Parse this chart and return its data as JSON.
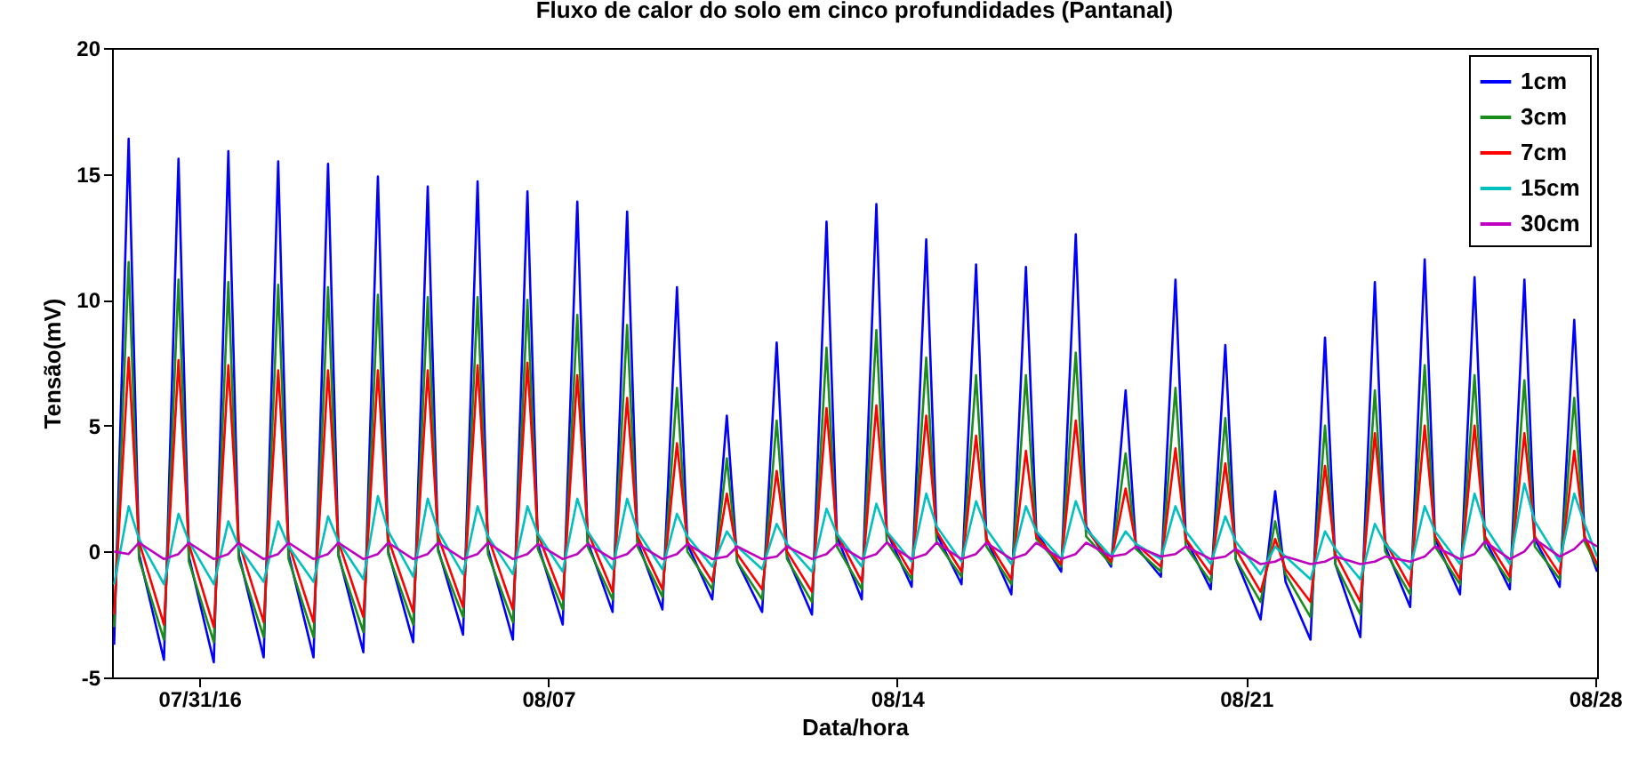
{
  "chart_data": {
    "type": "line",
    "title": "Fluxo de calor do solo em cinco profundidades (Pantanal)",
    "xlabel": "Data/hora",
    "ylabel": "Tensão(mV)",
    "x": [
      "--07-29T07:00",
      "--07-29T14:00",
      "--07-29T19:00",
      "--07-30T07:00",
      "--07-30T14:00",
      "--07-30T19:00",
      "--07-31T07:00",
      "--07-31T14:00",
      "--07-31T19:00",
      "--08-01T07:00",
      "--08-01T14:00",
      "--08-01T19:00",
      "--08-02T07:00",
      "--08-02T14:00",
      "--08-02T19:00",
      "--08-03T07:00",
      "--08-03T14:00",
      "--08-03T19:00",
      "--08-04T07:00",
      "--08-04T14:00",
      "--08-04T19:00",
      "--08-05T07:00",
      "--08-05T14:00",
      "--08-05T19:00",
      "--08-06T07:00",
      "--08-06T14:00",
      "--08-06T19:00",
      "--08-07T07:00",
      "--08-07T14:00",
      "--08-07T19:00",
      "--08-08T07:00",
      "--08-08T14:00",
      "--08-08T19:00",
      "--08-09T07:00",
      "--08-09T14:00",
      "--08-09T19:00",
      "--08-10T07:00",
      "--08-10T14:00",
      "--08-10T19:00",
      "--08-11T07:00",
      "--08-11T14:00",
      "--08-11T19:00",
      "--08-12T07:00",
      "--08-12T14:00",
      "--08-12T19:00",
      "--08-13T07:00",
      "--08-13T14:00",
      "--08-13T19:00",
      "--08-14T07:00",
      "--08-14T14:00",
      "--08-14T19:00",
      "--08-15T07:00",
      "--08-15T14:00",
      "--08-15T19:00",
      "--08-16T07:00",
      "--08-16T14:00",
      "--08-16T19:00",
      "--08-17T07:00",
      "--08-17T14:00",
      "--08-17T19:00",
      "--08-18T07:00",
      "--08-18T14:00",
      "--08-18T19:00",
      "--08-19T07:00",
      "--08-19T14:00",
      "--08-19T19:00",
      "--08-20T07:00",
      "--08-20T14:00",
      "--08-20T19:00",
      "--08-21T07:00",
      "--08-21T14:00",
      "--08-21T19:00",
      "--08-22T07:00",
      "--08-22T14:00",
      "--08-22T19:00",
      "--08-23T07:00",
      "--08-23T14:00",
      "--08-23T19:00",
      "--08-24T07:00",
      "--08-24T14:00",
      "--08-24T19:00",
      "--08-25T07:00",
      "--08-25T14:00",
      "--08-25T19:00",
      "--08-26T07:00",
      "--08-26T14:00",
      "--08-26T19:00",
      "--08-27T07:00",
      "--08-27T14:00",
      "--08-27T19:00",
      "--08-28T01:00"
    ],
    "series": [
      {
        "name": "1cm",
        "color": "#0000ff",
        "values": [
          -3.7,
          16.4,
          -0.1,
          -4.3,
          15.6,
          -0.2,
          -4.4,
          15.9,
          -0.1,
          -4.2,
          15.5,
          -0.1,
          -4.2,
          15.4,
          -0.1,
          -4.0,
          14.9,
          0.0,
          -3.6,
          14.5,
          0.1,
          -3.3,
          14.7,
          0.1,
          -3.5,
          14.3,
          0.3,
          -2.9,
          13.9,
          0.4,
          -2.4,
          13.5,
          0.4,
          -2.3,
          10.5,
          0.3,
          -1.9,
          5.4,
          -0.4,
          -2.4,
          8.3,
          -0.2,
          -2.5,
          13.1,
          0.6,
          -1.9,
          13.8,
          0.8,
          -1.4,
          12.4,
          0.7,
          -1.3,
          11.4,
          0.5,
          -1.7,
          11.3,
          0.8,
          -0.8,
          12.6,
          1.0,
          -0.6,
          6.4,
          0.2,
          -1.0,
          10.8,
          0.5,
          -1.5,
          8.2,
          -0.3,
          -2.7,
          2.4,
          -1.2,
          -3.5,
          8.5,
          -0.5,
          -3.4,
          10.7,
          0.2,
          -2.2,
          11.6,
          0.5,
          -1.7,
          10.9,
          0.5,
          -1.5,
          10.8,
          0.5,
          -1.4,
          9.2,
          0.6,
          -0.8
        ]
      },
      {
        "name": "3cm",
        "color": "#1a8c1a",
        "values": [
          -3.0,
          11.5,
          -0.3,
          -3.5,
          10.8,
          -0.4,
          -3.6,
          10.7,
          -0.3,
          -3.4,
          10.6,
          -0.3,
          -3.4,
          10.5,
          -0.2,
          -3.2,
          10.2,
          -0.1,
          -2.9,
          10.1,
          0.0,
          -2.6,
          10.1,
          -0.1,
          -2.8,
          10.0,
          0.1,
          -2.3,
          9.4,
          0.2,
          -1.9,
          9.0,
          0.2,
          -1.8,
          6.5,
          0.0,
          -1.5,
          3.7,
          -0.4,
          -1.9,
          5.2,
          -0.3,
          -2.0,
          8.1,
          0.2,
          -1.5,
          8.8,
          0.4,
          -1.1,
          7.7,
          0.4,
          -1.0,
          7.0,
          0.2,
          -1.3,
          7.0,
          0.5,
          -0.6,
          7.9,
          0.6,
          -0.5,
          3.9,
          0.1,
          -0.8,
          6.5,
          0.2,
          -1.2,
          5.3,
          -0.3,
          -2.0,
          1.2,
          -0.9,
          -2.6,
          5.0,
          -0.5,
          -2.5,
          6.4,
          0.0,
          -1.7,
          7.4,
          0.2,
          -1.3,
          7.0,
          0.2,
          -1.2,
          6.8,
          0.2,
          -1.1,
          6.1,
          0.4,
          -0.6
        ]
      },
      {
        "name": "7cm",
        "color": "#ff0000",
        "values": [
          -2.5,
          7.7,
          0.4,
          -2.9,
          7.6,
          0.3,
          -3.0,
          7.4,
          0.4,
          -2.8,
          7.2,
          0.3,
          -2.8,
          7.2,
          0.4,
          -2.6,
          7.2,
          0.5,
          -2.4,
          7.2,
          0.6,
          -2.2,
          7.4,
          0.6,
          -2.3,
          7.5,
          0.7,
          -1.9,
          7.0,
          0.8,
          -1.6,
          6.1,
          0.6,
          -1.5,
          4.3,
          0.4,
          -1.2,
          2.3,
          -0.1,
          -1.5,
          3.2,
          0.0,
          -1.6,
          5.7,
          0.7,
          -1.2,
          5.8,
          0.8,
          -0.9,
          5.4,
          0.8,
          -0.8,
          4.6,
          0.5,
          -1.1,
          4.0,
          0.6,
          -0.5,
          5.2,
          0.9,
          -0.4,
          2.5,
          0.3,
          -0.6,
          4.1,
          0.5,
          -0.9,
          3.5,
          0.1,
          -1.6,
          0.5,
          -0.7,
          -2.0,
          3.4,
          -0.1,
          -2.0,
          4.7,
          0.4,
          -1.4,
          5.0,
          0.6,
          -1.1,
          5.0,
          0.6,
          -1.0,
          4.7,
          0.6,
          -0.9,
          4.0,
          0.6,
          -0.5
        ]
      },
      {
        "name": "15cm",
        "color": "#00c0c0",
        "values": [
          -1.3,
          1.8,
          0.5,
          -1.3,
          1.5,
          0.4,
          -1.3,
          1.2,
          0.2,
          -1.2,
          1.2,
          0.2,
          -1.2,
          1.4,
          0.4,
          -1.1,
          2.2,
          0.8,
          -1.0,
          2.1,
          0.8,
          -0.9,
          1.8,
          0.6,
          -0.9,
          1.8,
          0.7,
          -0.8,
          2.1,
          0.8,
          -0.7,
          2.1,
          0.8,
          -0.7,
          1.5,
          0.6,
          -0.6,
          0.8,
          0.2,
          -0.7,
          1.1,
          0.3,
          -0.8,
          1.7,
          0.7,
          -0.6,
          1.9,
          0.8,
          -0.4,
          2.3,
          1.0,
          -0.4,
          2.0,
          0.9,
          -0.5,
          1.8,
          0.8,
          -0.3,
          2.0,
          0.9,
          -0.2,
          0.8,
          0.3,
          -0.3,
          1.8,
          0.8,
          -0.5,
          1.4,
          0.4,
          -0.9,
          0.2,
          -0.2,
          -1.1,
          0.8,
          0.1,
          -1.1,
          1.1,
          0.3,
          -0.7,
          1.8,
          0.8,
          -0.5,
          2.3,
          1.0,
          -0.5,
          2.7,
          1.2,
          -0.4,
          2.3,
          1.1,
          -0.2
        ]
      },
      {
        "name": "30cm",
        "color": "#c000c0",
        "values": [
          0.0,
          -0.1,
          0.35,
          -0.3,
          -0.1,
          0.35,
          -0.3,
          -0.1,
          0.35,
          -0.3,
          -0.1,
          0.35,
          -0.3,
          -0.1,
          0.35,
          -0.3,
          -0.1,
          0.35,
          -0.3,
          -0.1,
          0.35,
          -0.3,
          -0.1,
          0.35,
          -0.3,
          -0.1,
          0.3,
          -0.3,
          -0.1,
          0.3,
          -0.3,
          -0.1,
          0.3,
          -0.3,
          -0.1,
          0.3,
          -0.3,
          -0.2,
          0.2,
          -0.3,
          -0.2,
          0.2,
          -0.3,
          -0.1,
          0.3,
          -0.3,
          -0.1,
          0.35,
          -0.3,
          -0.1,
          0.35,
          -0.3,
          -0.1,
          0.35,
          -0.3,
          -0.1,
          0.35,
          -0.3,
          -0.1,
          0.35,
          -0.2,
          -0.1,
          0.2,
          -0.2,
          -0.1,
          0.2,
          -0.3,
          -0.2,
          0.1,
          -0.5,
          -0.4,
          -0.2,
          -0.5,
          -0.4,
          -0.2,
          -0.5,
          -0.4,
          -0.2,
          -0.4,
          -0.2,
          0.2,
          -0.3,
          -0.1,
          0.4,
          -0.3,
          0.0,
          0.5,
          -0.2,
          0.1,
          0.5,
          0.2
        ]
      }
    ],
    "xlim": [
      "--07-29T06:00",
      "--08-28T01:00"
    ],
    "xticks": [
      {
        "value": "--07-31",
        "label": "07/31/16"
      },
      {
        "value": "--08-07",
        "label": "08/07"
      },
      {
        "value": "--08-14",
        "label": "08/14"
      },
      {
        "value": "--08-21",
        "label": "08/21"
      },
      {
        "value": "--08-28",
        "label": "08/28"
      }
    ],
    "ylim": [
      -5,
      20
    ],
    "yticks": [
      -5,
      0,
      5,
      10,
      15,
      20
    ],
    "legend": "top right"
  }
}
